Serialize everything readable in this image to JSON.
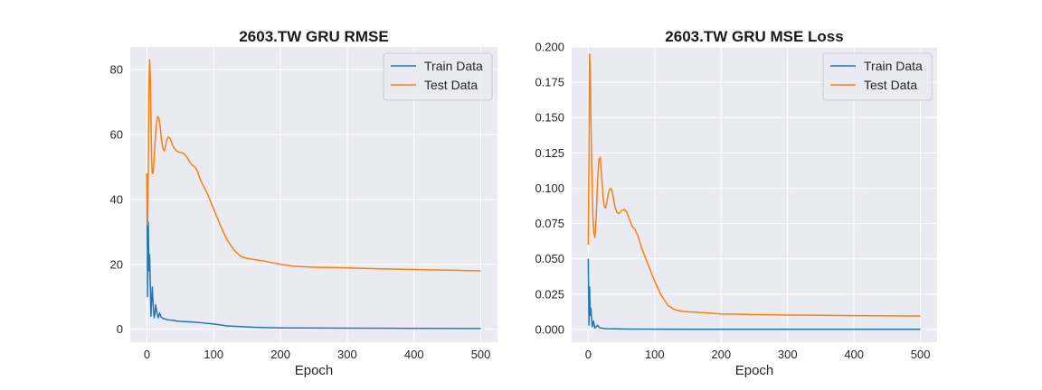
{
  "chart_data": [
    {
      "type": "line",
      "title": "2603.TW  GRU RMSE",
      "xlabel": "Epoch",
      "ylabel": "",
      "xlim": [
        -25,
        525
      ],
      "ylim": [
        -4,
        87
      ],
      "xticks": [
        0,
        100,
        200,
        300,
        400,
        500
      ],
      "yticks": [
        0,
        20,
        40,
        60,
        80
      ],
      "ytick_labels": [
        "0",
        "20",
        "40",
        "60",
        "80"
      ],
      "grid": true,
      "legend_position": "top-right",
      "series": [
        {
          "name": "Train Data",
          "color": "#1f77b4",
          "x": [
            0,
            1,
            2,
            3,
            4,
            5,
            6,
            7,
            8,
            9,
            10,
            11,
            12,
            13,
            15,
            17,
            19,
            21,
            24,
            27,
            30,
            35,
            40,
            45,
            50,
            60,
            70,
            80,
            100,
            120,
            140,
            160,
            180,
            200,
            250,
            300,
            400,
            500
          ],
          "y": [
            48,
            10,
            33,
            18,
            23,
            14,
            4,
            9,
            13,
            9,
            5,
            3.5,
            5,
            7.5,
            5,
            3.5,
            5,
            3.8,
            3.3,
            3.2,
            2.9,
            2.8,
            2.7,
            2.5,
            2.4,
            2.3,
            2.2,
            2.0,
            1.6,
            1.0,
            0.8,
            0.6,
            0.5,
            0.4,
            0.35,
            0.3,
            0.25,
            0.2
          ]
        },
        {
          "name": "Test Data",
          "color": "#ff7f0e",
          "x": [
            0,
            1,
            2,
            3,
            4,
            5,
            6,
            7,
            8,
            9,
            10,
            12,
            14,
            16,
            18,
            20,
            22,
            24,
            26,
            28,
            30,
            32,
            34,
            36,
            38,
            40,
            44,
            48,
            52,
            56,
            60,
            64,
            68,
            72,
            76,
            80,
            90,
            100,
            110,
            120,
            130,
            140,
            150,
            170,
            200,
            220,
            250,
            300,
            350,
            400,
            450,
            500
          ],
          "y": [
            48,
            32,
            50,
            75,
            83,
            78,
            65,
            53,
            48,
            48,
            50,
            57,
            63,
            65.5,
            65,
            62,
            58,
            55.5,
            55,
            56.5,
            58.5,
            59.2,
            59,
            58,
            57,
            56,
            55,
            54.5,
            54.5,
            54,
            53,
            51.5,
            50.5,
            50,
            48.5,
            46,
            42,
            37,
            32,
            27.5,
            24.5,
            22.5,
            21.8,
            21.2,
            20,
            19.4,
            19.1,
            18.9,
            18.6,
            18.4,
            18.2,
            18
          ]
        }
      ]
    },
    {
      "type": "line",
      "title": "2603.TW  GRU MSE Loss",
      "xlabel": "Epoch",
      "ylabel": "",
      "xlim": [
        -25,
        525
      ],
      "ylim": [
        -0.009,
        0.2
      ],
      "xticks": [
        0,
        100,
        200,
        300,
        400,
        500
      ],
      "yticks": [
        0,
        0.025,
        0.05,
        0.075,
        0.1,
        0.125,
        0.15,
        0.175,
        0.2
      ],
      "ytick_labels": [
        "0.000",
        "0.025",
        "0.050",
        "0.075",
        "0.100",
        "0.125",
        "0.150",
        "0.175",
        "0.200"
      ],
      "grid": true,
      "legend_position": "top-right",
      "series": [
        {
          "name": "Train Data",
          "color": "#1f77b4",
          "x": [
            0,
            1,
            2,
            3,
            4,
            5,
            6,
            7,
            8,
            9,
            10,
            12,
            14,
            16,
            18,
            20,
            25,
            30,
            40,
            60,
            100,
            200,
            300,
            400,
            500
          ],
          "y": [
            0.05,
            0.003,
            0.03,
            0.01,
            0.015,
            0.008,
            0.002,
            0.004,
            0.006,
            0.003,
            0.001,
            0.002,
            0.003,
            0.0015,
            0.001,
            0.001,
            0.0006,
            0.0005,
            0.0004,
            0.0003,
            0.0002,
            0.0001,
            0.0001,
            0.0001,
            0.0001
          ]
        },
        {
          "name": "Test Data",
          "color": "#ff7f0e",
          "x": [
            0,
            1,
            2,
            3,
            4,
            5,
            6,
            7,
            8,
            10,
            12,
            14,
            16,
            18,
            20,
            22,
            24,
            26,
            28,
            30,
            32,
            34,
            36,
            38,
            40,
            43,
            46,
            50,
            54,
            58,
            62,
            66,
            70,
            75,
            80,
            90,
            100,
            110,
            120,
            130,
            140,
            150,
            170,
            200,
            220,
            250,
            300,
            350,
            400,
            450,
            500
          ],
          "y": [
            0.06,
            0.12,
            0.195,
            0.185,
            0.15,
            0.12,
            0.1,
            0.08,
            0.07,
            0.065,
            0.08,
            0.105,
            0.12,
            0.122,
            0.11,
            0.095,
            0.087,
            0.086,
            0.09,
            0.096,
            0.099,
            0.1,
            0.098,
            0.093,
            0.087,
            0.083,
            0.082,
            0.084,
            0.085,
            0.083,
            0.078,
            0.073,
            0.071,
            0.066,
            0.058,
            0.046,
            0.034,
            0.024,
            0.017,
            0.014,
            0.013,
            0.0125,
            0.012,
            0.011,
            0.0108,
            0.0105,
            0.0102,
            0.01,
            0.0098,
            0.0096,
            0.0095
          ]
        }
      ]
    }
  ]
}
